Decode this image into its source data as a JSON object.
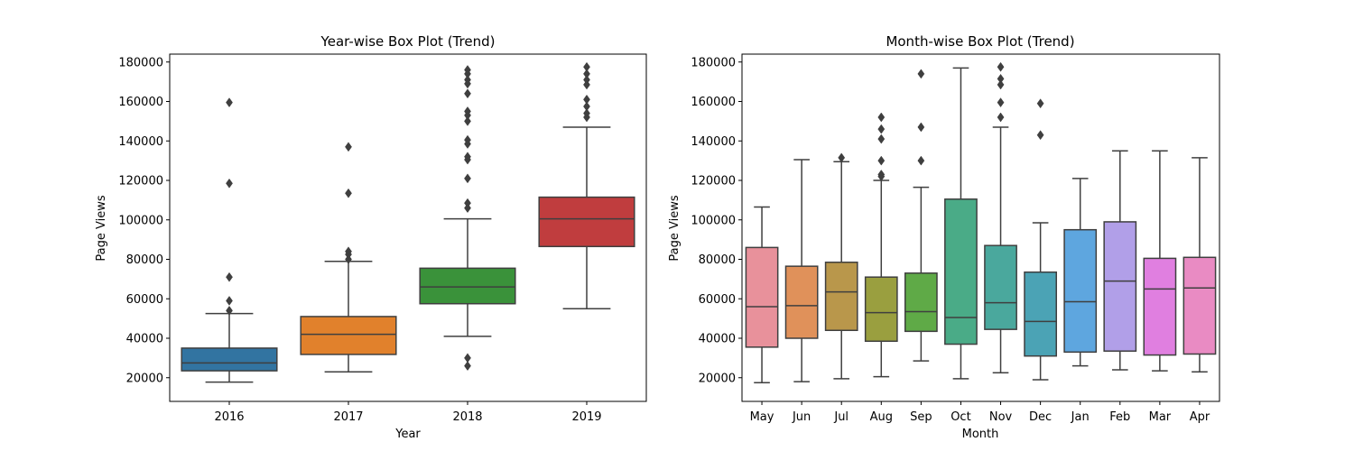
{
  "chart_data": [
    {
      "type": "box",
      "title": "Year-wise Box Plot (Trend)",
      "xlabel": "Year",
      "ylabel": "Page Views",
      "ylim": [
        8000,
        184000
      ],
      "yticks": [
        20000,
        40000,
        60000,
        80000,
        100000,
        120000,
        140000,
        160000,
        180000
      ],
      "ytick_labels": [
        "20000",
        "40000",
        "60000",
        "80000",
        "100000",
        "120000",
        "140000",
        "160000",
        "180000"
      ],
      "categories": [
        "2016",
        "2017",
        "2018",
        "2019"
      ],
      "colors": [
        "#3274a1",
        "#e1812c",
        "#3a923a",
        "#c03d3e"
      ],
      "boxes": [
        {
          "whislo": 17800,
          "q1": 23500,
          "med": 27500,
          "q3": 35000,
          "whishi": 52500,
          "fliers": [
            54000,
            59000,
            71000,
            118500,
            159500
          ]
        },
        {
          "whislo": 23000,
          "q1": 31800,
          "med": 42000,
          "q3": 51000,
          "whishi": 79000,
          "fliers": [
            80000,
            82500,
            84000,
            113500,
            137000
          ]
        },
        {
          "whislo": 41000,
          "q1": 57500,
          "med": 66000,
          "q3": 75500,
          "whishi": 100500,
          "fliers": [
            26000,
            30000,
            106000,
            108500,
            121000,
            130500,
            132000,
            138500,
            140500,
            150000,
            153000,
            155000,
            164000,
            169000,
            171000,
            174000,
            176000
          ]
        },
        {
          "whislo": 55000,
          "q1": 86500,
          "med": 100500,
          "q3": 111500,
          "whishi": 147000,
          "fliers": [
            152000,
            154000,
            157500,
            161000,
            168500,
            171000,
            174000,
            177500
          ]
        }
      ]
    },
    {
      "type": "box",
      "title": "Month-wise Box Plot (Trend)",
      "xlabel": "Month",
      "ylabel": "Page Views",
      "ylim": [
        8000,
        184000
      ],
      "yticks": [
        20000,
        40000,
        60000,
        80000,
        100000,
        120000,
        140000,
        160000,
        180000
      ],
      "ytick_labels": [
        "20000",
        "40000",
        "60000",
        "80000",
        "100000",
        "120000",
        "140000",
        "160000",
        "180000"
      ],
      "categories": [
        "May",
        "Jun",
        "Jul",
        "Aug",
        "Sep",
        "Oct",
        "Nov",
        "Dec",
        "Jan",
        "Feb",
        "Mar",
        "Apr"
      ],
      "colors": [
        "#e8919b",
        "#e0915a",
        "#b9974b",
        "#9a9f3f",
        "#5faa47",
        "#4aab87",
        "#4aa89d",
        "#4ba3b5",
        "#5ea6df",
        "#b19fe8",
        "#e07fe0",
        "#e98bc3"
      ],
      "boxes": [
        {
          "whislo": 17500,
          "q1": 35500,
          "med": 56000,
          "q3": 86000,
          "whishi": 106500,
          "fliers": []
        },
        {
          "whislo": 18000,
          "q1": 40000,
          "med": 56500,
          "q3": 76500,
          "whishi": 130500,
          "fliers": []
        },
        {
          "whislo": 19500,
          "q1": 44000,
          "med": 63500,
          "q3": 78500,
          "whishi": 129500,
          "fliers": [
            131500
          ]
        },
        {
          "whislo": 20500,
          "q1": 38500,
          "med": 53000,
          "q3": 71000,
          "whishi": 120000,
          "fliers": [
            122000,
            123000,
            130000,
            141000,
            146000,
            152000
          ]
        },
        {
          "whislo": 28500,
          "q1": 43500,
          "med": 53500,
          "q3": 73000,
          "whishi": 116500,
          "fliers": [
            130000,
            147000,
            174000
          ]
        },
        {
          "whislo": 19500,
          "q1": 37000,
          "med": 50500,
          "q3": 110500,
          "whishi": 177000,
          "fliers": []
        },
        {
          "whislo": 22500,
          "q1": 44500,
          "med": 58000,
          "q3": 87000,
          "whishi": 147000,
          "fliers": [
            152000,
            159500,
            168500,
            171500,
            177500
          ]
        },
        {
          "whislo": 19000,
          "q1": 31000,
          "med": 48500,
          "q3": 73500,
          "whishi": 98500,
          "fliers": [
            143000,
            159000
          ]
        },
        {
          "whislo": 26000,
          "q1": 33000,
          "med": 58500,
          "q3": 95000,
          "whishi": 121000,
          "fliers": []
        },
        {
          "whislo": 24000,
          "q1": 33500,
          "med": 69000,
          "q3": 99000,
          "whishi": 135000,
          "fliers": []
        },
        {
          "whislo": 23500,
          "q1": 31500,
          "med": 65000,
          "q3": 80500,
          "whishi": 135000,
          "fliers": []
        },
        {
          "whislo": 23000,
          "q1": 32000,
          "med": 65500,
          "q3": 81000,
          "whishi": 131500,
          "fliers": []
        }
      ]
    }
  ]
}
